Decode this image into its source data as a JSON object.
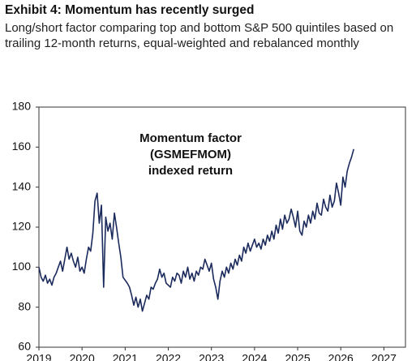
{
  "chart_data": {
    "type": "line",
    "title": "Exhibit 4: Momentum has recently surged",
    "subtitle": "Long/short factor comparing top and bottom S&P 500 quintiles based on trailing 12-month returns, equal-weighted and rebalanced monthly",
    "annotation": [
      "Momentum factor",
      "(GSMEFMOM)",
      "indexed return"
    ],
    "xlim": [
      2019,
      2027.5
    ],
    "xticks": [
      2019,
      2020,
      2021,
      2022,
      2023,
      2024,
      2025,
      2026,
      2027
    ],
    "ylim": [
      60,
      180
    ],
    "yticks": [
      60,
      80,
      100,
      120,
      140,
      160,
      180
    ],
    "x": [
      2019.0,
      2019.05,
      2019.1,
      2019.15,
      2019.2,
      2019.25,
      2019.3,
      2019.35,
      2019.4,
      2019.45,
      2019.5,
      2019.55,
      2019.6,
      2019.65,
      2019.7,
      2019.75,
      2019.8,
      2019.85,
      2019.9,
      2019.95,
      2020.0,
      2020.05,
      2020.1,
      2020.15,
      2020.2,
      2020.25,
      2020.3,
      2020.35,
      2020.4,
      2020.45,
      2020.5,
      2020.55,
      2020.6,
      2020.65,
      2020.7,
      2020.75,
      2020.8,
      2020.85,
      2020.9,
      2020.95,
      2021.05,
      2021.1,
      2021.15,
      2021.2,
      2021.25,
      2021.3,
      2021.35,
      2021.4,
      2021.45,
      2021.5,
      2021.55,
      2021.6,
      2021.65,
      2021.7,
      2021.75,
      2021.8,
      2021.85,
      2021.9,
      2021.95,
      2022.05,
      2022.1,
      2022.15,
      2022.2,
      2022.25,
      2022.3,
      2022.35,
      2022.4,
      2022.45,
      2022.5,
      2022.55,
      2022.6,
      2022.65,
      2022.7,
      2022.75,
      2022.8,
      2022.85,
      2022.9,
      2022.95,
      2023.0,
      2023.05,
      2023.1,
      2023.15,
      2023.2,
      2023.25,
      2023.3,
      2023.35,
      2023.4,
      2023.45,
      2023.5,
      2023.55,
      2023.6,
      2023.65,
      2023.7,
      2023.75,
      2023.8,
      2023.85,
      2023.9,
      2023.95,
      2024.0,
      2024.05,
      2024.1,
      2024.15,
      2024.2,
      2024.25,
      2024.3,
      2024.35,
      2024.4,
      2024.45,
      2024.5,
      2024.55,
      2024.6,
      2024.65,
      2024.7,
      2024.75,
      2024.8,
      2024.85,
      2024.9,
      2024.95,
      2025.0,
      2025.05,
      2025.1,
      2025.15,
      2025.2,
      2025.25,
      2025.3,
      2025.35,
      2025.4,
      2025.45,
      2025.5,
      2025.55,
      2025.6,
      2025.65,
      2025.7,
      2025.75,
      2025.8,
      2025.85,
      2025.9,
      2025.95,
      2026.0,
      2026.05,
      2026.1,
      2026.15,
      2026.2,
      2026.25,
      2026.3
    ],
    "series": [
      {
        "color": "#1b2a5c",
        "values": [
          100,
          95,
          93,
          96,
          92,
          94,
          91,
          95,
          97,
          100,
          103,
          98,
          104,
          110,
          104,
          107,
          103,
          100,
          105,
          98,
          100,
          97,
          104,
          110,
          108,
          117,
          133,
          137,
          122,
          131,
          90,
          125,
          118,
          122,
          114,
          127,
          120,
          112,
          105,
          95,
          92,
          90,
          86,
          81,
          85,
          80,
          84,
          78,
          82,
          86,
          84,
          90,
          89,
          92,
          94,
          99,
          95,
          97,
          92,
          90,
          95,
          93,
          97,
          96,
          92,
          98,
          95,
          100,
          94,
          97,
          93,
          98,
          96,
          100,
          99,
          104,
          101,
          98,
          102,
          94,
          90,
          84,
          93,
          98,
          95,
          100,
          97,
          102,
          99,
          104,
          101,
          106,
          103,
          110,
          107,
          112,
          108,
          111,
          114,
          110,
          112,
          109,
          114,
          111,
          116,
          113,
          118,
          114,
          121,
          117,
          124,
          119,
          126,
          122,
          124,
          129,
          125,
          120,
          128,
          118,
          116,
          123,
          120,
          126,
          122,
          128,
          124,
          132,
          127,
          126,
          134,
          130,
          128,
          136,
          130,
          133,
          142,
          137,
          131,
          145,
          140,
          148,
          152,
          155,
          159
        ]
      }
    ]
  }
}
